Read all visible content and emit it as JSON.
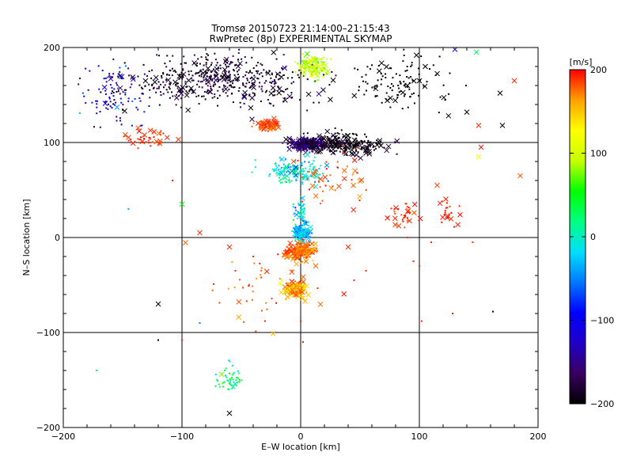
{
  "chart_data": {
    "type": "scatter",
    "title": "Tromsø 20150723 21:14:00–21:15:43",
    "subtitle": "RwPretec (8p) EXPERIMENTAL SKYMAP",
    "xlabel": "E–W location [km]",
    "ylabel": "N–S location [km]",
    "xlim": [
      -200,
      200
    ],
    "ylim": [
      -200,
      200
    ],
    "xticks": [
      -200,
      -100,
      0,
      100,
      200
    ],
    "yticks": [
      -200,
      -100,
      0,
      100,
      200
    ],
    "x_tick_labels": [
      "−200",
      "−100",
      "0",
      "100",
      "200"
    ],
    "y_tick_labels": [
      "−200",
      "−100",
      "0",
      "100",
      "200"
    ],
    "grid": true,
    "markers": [
      "dot",
      "cross"
    ],
    "colorbar": {
      "label": "[m/s]",
      "range": [
        -200,
        200
      ],
      "ticks": [
        200,
        100,
        0,
        -100,
        -200
      ],
      "tick_labels": [
        "200",
        "100",
        "0",
        "−100",
        "−200"
      ],
      "colormap": [
        "#000000",
        "#3a0060",
        "#2000c8",
        "#0000ff",
        "#0078ff",
        "#00e0ff",
        "#00ff80",
        "#00ff00",
        "#c8ff00",
        "#ffff00",
        "#ffa000",
        "#ff0000"
      ]
    },
    "clusters": [
      {
        "cx": -70,
        "cy": 165,
        "sx": 65,
        "sy": 22,
        "n": 480,
        "vmean": -185,
        "vsd": 30,
        "crossFrac": 0.12
      },
      {
        "cx": 5,
        "cy": 98,
        "sx": 14,
        "sy": 5,
        "n": 260,
        "vmean": -160,
        "vsd": 25,
        "crossFrac": 0.35
      },
      {
        "cx": 35,
        "cy": 98,
        "sx": 30,
        "sy": 10,
        "n": 220,
        "vmean": -195,
        "vsd": 20,
        "crossFrac": 0.4
      },
      {
        "cx": 10,
        "cy": 180,
        "sx": 12,
        "sy": 10,
        "n": 150,
        "vmean": 95,
        "vsd": 30,
        "crossFrac": 0.2
      },
      {
        "cx": -28,
        "cy": 118,
        "sx": 8,
        "sy": 5,
        "n": 70,
        "vmean": 185,
        "vsd": 15,
        "crossFrac": 0.4
      },
      {
        "cx": -5,
        "cy": 70,
        "sx": 20,
        "sy": 12,
        "n": 170,
        "vmean": -10,
        "vsd": 45,
        "crossFrac": 0.08
      },
      {
        "cx": 80,
        "cy": 165,
        "sx": 40,
        "sy": 25,
        "n": 120,
        "vmean": -200,
        "vsd": 10,
        "crossFrac": 0.15
      },
      {
        "cx": 0,
        "cy": 5,
        "sx": 6,
        "sy": 8,
        "n": 130,
        "vmean": -30,
        "vsd": 40,
        "crossFrac": 0.3
      },
      {
        "cx": 0,
        "cy": -15,
        "sx": 10,
        "sy": 8,
        "n": 190,
        "vmean": 175,
        "vsd": 25,
        "crossFrac": 0.5
      },
      {
        "cx": -5,
        "cy": -55,
        "sx": 10,
        "sy": 8,
        "n": 130,
        "vmean": 160,
        "vsd": 35,
        "crossFrac": 0.4
      },
      {
        "cx": -60,
        "cy": -150,
        "sx": 8,
        "sy": 14,
        "n": 50,
        "vmean": 20,
        "vsd": 50,
        "crossFrac": 0.05
      },
      {
        "cx": 85,
        "cy": 25,
        "sx": 10,
        "sy": 10,
        "n": 35,
        "vmean": 190,
        "vsd": 10,
        "crossFrac": 0.3
      },
      {
        "cx": 125,
        "cy": 30,
        "sx": 8,
        "sy": 15,
        "n": 22,
        "vmean": 195,
        "vsd": 8,
        "crossFrac": 0.3
      },
      {
        "cx": -130,
        "cy": 105,
        "sx": 18,
        "sy": 8,
        "n": 45,
        "vmean": 190,
        "vsd": 15,
        "crossFrac": 0.3
      },
      {
        "cx": -160,
        "cy": 150,
        "sx": 25,
        "sy": 30,
        "n": 100,
        "vmean": -130,
        "vsd": 70,
        "crossFrac": 0.05
      },
      {
        "cx": 25,
        "cy": 60,
        "sx": 25,
        "sy": 25,
        "n": 50,
        "vmean": 185,
        "vsd": 20,
        "crossFrac": 0.4
      },
      {
        "cx": 0,
        "cy": 30,
        "sx": 5,
        "sy": 12,
        "n": 40,
        "vmean": -20,
        "vsd": 50,
        "crossFrac": 0.1
      },
      {
        "cx": -20,
        "cy": -50,
        "sx": 40,
        "sy": 40,
        "n": 45,
        "vmean": 180,
        "vsd": 20,
        "crossFrac": 0.3
      }
    ],
    "points": [
      {
        "x": -120,
        "y": -70,
        "v": -200,
        "m": "cross"
      },
      {
        "x": -60,
        "y": -185,
        "v": -200,
        "m": "cross"
      },
      {
        "x": 185,
        "y": 65,
        "v": 180,
        "m": "cross"
      },
      {
        "x": 150,
        "y": 85,
        "v": 120,
        "m": "cross"
      },
      {
        "x": 152,
        "y": 95,
        "v": 195,
        "m": "cross"
      },
      {
        "x": 180,
        "y": 165,
        "v": 190,
        "m": "cross"
      },
      {
        "x": 168,
        "y": 152,
        "v": -200,
        "m": "cross"
      },
      {
        "x": 148,
        "y": 195,
        "v": 30,
        "m": "cross"
      },
      {
        "x": 130,
        "y": 198,
        "v": -120,
        "m": "cross"
      },
      {
        "x": 105,
        "y": 180,
        "v": -200,
        "m": "cross"
      },
      {
        "x": 140,
        "y": 132,
        "v": -200,
        "m": "cross"
      },
      {
        "x": 150,
        "y": 118,
        "v": 190,
        "m": "cross"
      },
      {
        "x": 170,
        "y": 118,
        "v": -200,
        "m": "cross"
      },
      {
        "x": 90,
        "y": 160,
        "v": -200,
        "m": "cross"
      },
      {
        "x": 100,
        "y": 165,
        "v": -200,
        "m": "cross"
      },
      {
        "x": 115,
        "y": 55,
        "v": 185,
        "m": "cross"
      },
      {
        "x": 100,
        "y": -30,
        "v": 190,
        "m": "dot"
      },
      {
        "x": 102,
        "y": -88,
        "v": 190,
        "m": "dot"
      },
      {
        "x": 128,
        "y": -80,
        "v": 190,
        "m": "dot"
      },
      {
        "x": 162,
        "y": -78,
        "v": -200,
        "m": "dot"
      },
      {
        "x": -120,
        "y": -108,
        "v": -200,
        "m": "dot"
      },
      {
        "x": -172,
        "y": -140,
        "v": 20,
        "m": "dot"
      },
      {
        "x": -100,
        "y": -108,
        "v": 190,
        "m": "dot"
      },
      {
        "x": -85,
        "y": -90,
        "v": -50,
        "m": "dot"
      },
      {
        "x": -108,
        "y": 60,
        "v": 190,
        "m": "dot"
      },
      {
        "x": -100,
        "y": 35,
        "v": 50,
        "m": "cross"
      },
      {
        "x": -85,
        "y": 5,
        "v": 190,
        "m": "cross"
      },
      {
        "x": -60,
        "y": -10,
        "v": 190,
        "m": "cross"
      },
      {
        "x": -40,
        "y": -20,
        "v": 190,
        "m": "dot"
      },
      {
        "x": -55,
        "y": -35,
        "v": 190,
        "m": "dot"
      },
      {
        "x": 90,
        "y": 0,
        "v": 190,
        "m": "dot"
      },
      {
        "x": 110,
        "y": -5,
        "v": 190,
        "m": "dot"
      },
      {
        "x": 95,
        "y": -25,
        "v": 190,
        "m": "dot"
      },
      {
        "x": 145,
        "y": -5,
        "v": 190,
        "m": "dot"
      },
      {
        "x": -145,
        "y": 30,
        "v": -40,
        "m": "dot"
      },
      {
        "x": 40,
        "y": -10,
        "v": 190,
        "m": "cross"
      },
      {
        "x": 45,
        "y": -45,
        "v": 190,
        "m": "dot"
      },
      {
        "x": 55,
        "y": -35,
        "v": 190,
        "m": "dot"
      },
      {
        "x": -30,
        "y": -88,
        "v": 190,
        "m": "dot"
      },
      {
        "x": 0,
        "y": -88,
        "v": 190,
        "m": "dot"
      },
      {
        "x": 2,
        "y": -110,
        "v": 190,
        "m": "dot"
      }
    ]
  }
}
